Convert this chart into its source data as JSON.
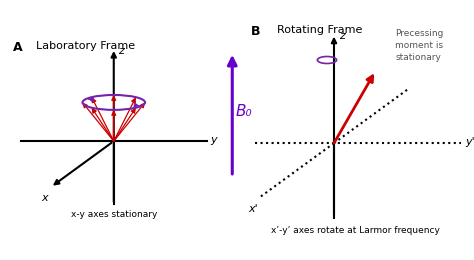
{
  "bg_color": "#ffffff",
  "panel_A_title": "Laboratory Frame",
  "panel_B_title": "Rotating Frame",
  "label_A": "A",
  "label_B": "B",
  "subtitle_A": "x-y axes stationary",
  "subtitle_B": "x’-y’ axes rotate at Larmor frequency",
  "B0_label": "B₀",
  "annotation_B": "Precessing\nmoment is\nstationary",
  "axis_color": "#000000",
  "red": "#cc0000",
  "purple": "#7722aa",
  "B0_color": "#6600cc"
}
